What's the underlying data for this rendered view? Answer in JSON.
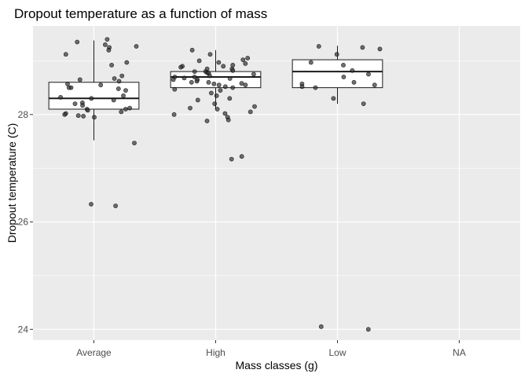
{
  "chart_data": {
    "type": "boxplot",
    "title": "Dropout temperature as a function of mass",
    "xlabel": "Mass classes (g)",
    "ylabel": "Dropout temperature (C)",
    "categories": [
      "Average",
      "High",
      "Low",
      "NA"
    ],
    "y_ticks": [
      24,
      26,
      28
    ],
    "y_tick_labels": [
      "24",
      "26",
      "28"
    ],
    "ylim": [
      23.8,
      29.65
    ],
    "grid": true,
    "colors": {
      "panel": "#ebebeb",
      "grid": "#ffffff",
      "box_fill": "#ffffff",
      "box_line": "#1a1a1a",
      "point": "#333333"
    },
    "boxes": [
      {
        "category": "Average",
        "whisker_low": 27.52,
        "q1": 28.1,
        "median": 28.3,
        "q3": 28.6,
        "whisker_high": 29.38
      },
      {
        "category": "High",
        "whisker_low": 28.1,
        "q1": 28.5,
        "median": 28.7,
        "q3": 28.8,
        "whisker_high": 29.2
      },
      {
        "category": "Low",
        "whisker_low": 28.2,
        "q1": 28.5,
        "median": 28.8,
        "q3": 29.02,
        "whisker_high": 29.28
      }
    ],
    "points": [
      {
        "category": "Average",
        "values": [
          29.4,
          29.35,
          29.3,
          29.27,
          29.25,
          29.2,
          29.12,
          28.97,
          28.92,
          28.72,
          28.67,
          28.65,
          28.62,
          28.57,
          28.55,
          28.5,
          28.5,
          28.48,
          28.45,
          28.35,
          28.32,
          28.3,
          28.27,
          28.22,
          28.2,
          28.17,
          28.12,
          28.1,
          28.1,
          28.08,
          28.05,
          28.02,
          28.0,
          27.98,
          27.97,
          27.95,
          27.47,
          26.33,
          26.3
        ]
      },
      {
        "category": "High",
        "values": [
          29.2,
          29.12,
          29.05,
          29.02,
          29.0,
          28.97,
          28.95,
          28.92,
          28.9,
          28.9,
          28.88,
          28.85,
          28.85,
          28.82,
          28.8,
          28.8,
          28.78,
          28.77,
          28.75,
          28.72,
          28.7,
          28.7,
          28.68,
          28.67,
          28.65,
          28.65,
          28.62,
          28.6,
          28.6,
          28.58,
          28.57,
          28.55,
          28.55,
          28.52,
          28.5,
          28.47,
          28.45,
          28.4,
          28.35,
          28.3,
          28.27,
          28.2,
          28.15,
          28.12,
          28.1,
          28.05,
          28.02,
          28.0,
          27.95,
          27.9,
          27.88,
          27.22,
          27.17
        ]
      },
      {
        "category": "Low",
        "values": [
          29.27,
          29.25,
          29.22,
          29.12,
          28.97,
          28.92,
          28.82,
          28.75,
          28.7,
          28.6,
          28.57,
          28.55,
          28.52,
          28.5,
          28.3,
          28.2,
          24.05,
          24.0
        ]
      }
    ]
  }
}
